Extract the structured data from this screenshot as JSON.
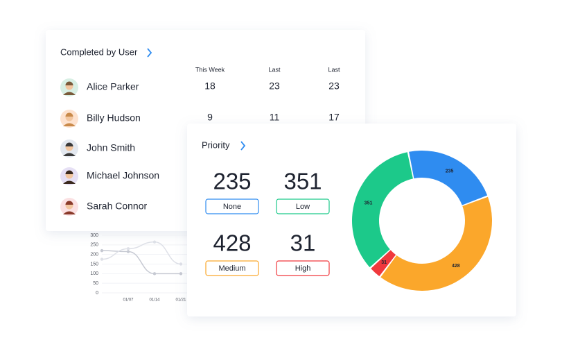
{
  "completed_by_user": {
    "title": "Completed by User",
    "columns": [
      "This Week",
      "Last",
      "Last"
    ],
    "rows": [
      {
        "name": "Alice Parker",
        "values": [
          18,
          23,
          23
        ]
      },
      {
        "name": "Billy Hudson",
        "values": [
          9,
          11,
          17
        ]
      },
      {
        "name": "John Smith"
      },
      {
        "name": "Michael Johnson"
      },
      {
        "name": "Sarah Connor"
      }
    ]
  },
  "priority": {
    "title": "Priority"
  },
  "chart_data": [
    {
      "type": "donut",
      "categories": [
        "None",
        "Medium",
        "High",
        "Low"
      ],
      "values": [
        235,
        428,
        31,
        351
      ],
      "colors": [
        "#2f8cf0",
        "#fba72b",
        "#f0383c",
        "#1cc98a"
      ]
    },
    {
      "type": "line",
      "categories": [
        null,
        "01/07",
        "01/14",
        "01/21"
      ],
      "series": [
        {
          "color": "#b8bcc8",
          "values": [
            220,
            215,
            100,
            100
          ]
        },
        {
          "color": "#d6d9e2",
          "values": [
            175,
            230,
            265,
            150
          ]
        }
      ],
      "ylim": [
        0,
        300
      ],
      "yticks": [
        0,
        50,
        100,
        150,
        200,
        250,
        300
      ],
      "grid": true
    }
  ]
}
